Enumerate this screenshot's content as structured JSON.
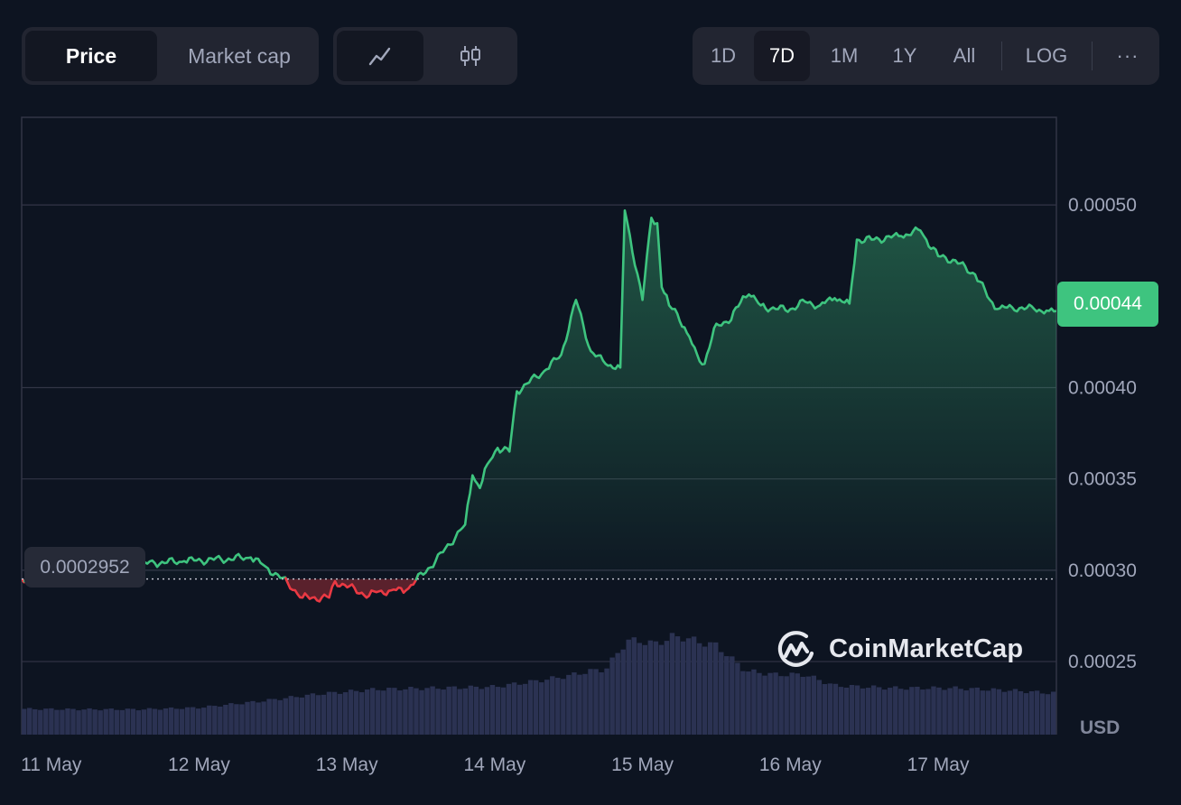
{
  "toggle": {
    "price_label": "Price",
    "market_cap_label": "Market cap"
  },
  "chart_type_icons": [
    "line-chart-icon",
    "candlestick-icon"
  ],
  "range": {
    "options": [
      "1D",
      "7D",
      "1M",
      "1Y",
      "All"
    ],
    "selected": "7D",
    "log_label": "LOG",
    "more_label": "···"
  },
  "current_price_label": "0.00044",
  "open_price_label": "0.0002952",
  "unit_label": "USD",
  "watermark": "CoinMarketCap",
  "colors": {
    "up": "#3ec47f",
    "down": "#ea3943",
    "volume": "#2b3252",
    "grid": "#323546",
    "background": "#0d1421"
  },
  "chart_data": {
    "type": "area",
    "title": "",
    "xlabel": "",
    "ylabel": "USD",
    "ylim": [
      0.00021,
      0.000548
    ],
    "y_ticks": [
      "0.00025",
      "0.00030",
      "0.00035",
      "0.00040",
      "0.00044",
      "0.00050"
    ],
    "x_ticks": [
      "11 May",
      "12 May",
      "13 May",
      "14 May",
      "15 May",
      "16 May",
      "17 May"
    ],
    "x_tick_days": [
      10.7,
      11.7,
      12.7,
      13.7,
      14.7,
      15.7,
      16.7
    ],
    "xlim": [
      10.5,
      17.5
    ],
    "baseline": 0.0002952,
    "grid": true,
    "series": [
      {
        "values_x_days": [
          10.5,
          10.75,
          10.95,
          11.15,
          11.4,
          11.6,
          11.85,
          12.05,
          12.15,
          12.3,
          12.4,
          12.58,
          12.62,
          12.85,
          12.9,
          13.0,
          13.1,
          13.3,
          13.5,
          13.55,
          13.6,
          13.65,
          13.72,
          13.8,
          13.85,
          14.05,
          14.15,
          14.25,
          14.35,
          14.45,
          14.55,
          14.58,
          14.7,
          14.76,
          14.8,
          14.83,
          14.88,
          14.92,
          15.0,
          15.07,
          15.12,
          15.2,
          15.3,
          15.38,
          15.42,
          15.5,
          15.6,
          15.7,
          15.8,
          15.9,
          16.0,
          16.1,
          16.15,
          16.25,
          16.45,
          16.58,
          16.62,
          16.7,
          16.8,
          16.95,
          17.05,
          17.1,
          17.2,
          17.35,
          17.45,
          17.5
        ],
        "values_y": [
          0.000295,
          0.000303,
          0.000302,
          0.000302,
          0.000304,
          0.000305,
          0.000306,
          0.000307,
          0.000302,
          0.000293,
          0.000285,
          0.000285,
          0.000294,
          0.000286,
          0.000288,
          0.000289,
          0.000289,
          0.000305,
          0.000325,
          0.000352,
          0.000345,
          0.000358,
          0.000367,
          0.000365,
          0.000398,
          0.00041,
          0.000418,
          0.000448,
          0.00042,
          0.000413,
          0.000411,
          0.000497,
          0.000448,
          0.000493,
          0.00049,
          0.000455,
          0.000445,
          0.000443,
          0.00043,
          0.000418,
          0.000413,
          0.000435,
          0.000437,
          0.00045,
          0.000451,
          0.000445,
          0.000443,
          0.000443,
          0.000447,
          0.000445,
          0.000449,
          0.000446,
          0.000481,
          0.000481,
          0.000483,
          0.000486,
          0.000481,
          0.000472,
          0.00047,
          0.000462,
          0.000448,
          0.000443,
          0.000444,
          0.000443,
          0.000442,
          0.000442
        ]
      }
    ],
    "volume": {
      "x_days": [
        10.5,
        10.9,
        11.3,
        11.7,
        12.1,
        12.5,
        12.9,
        13.3,
        13.7,
        14.0,
        14.2,
        14.35,
        14.45,
        14.6,
        14.7,
        14.8,
        14.9,
        15.0,
        15.1,
        15.2,
        15.4,
        15.6,
        15.8,
        16.0,
        16.2,
        16.4,
        16.6,
        16.8,
        17.0,
        17.2,
        17.45
      ],
      "values": [
        0.105,
        0.103,
        0.103,
        0.11,
        0.135,
        0.165,
        0.185,
        0.19,
        0.195,
        0.22,
        0.24,
        0.26,
        0.265,
        0.385,
        0.38,
        0.37,
        0.4,
        0.395,
        0.375,
        0.365,
        0.26,
        0.245,
        0.245,
        0.2,
        0.195,
        0.19,
        0.19,
        0.19,
        0.185,
        0.18,
        0.17
      ]
    }
  }
}
